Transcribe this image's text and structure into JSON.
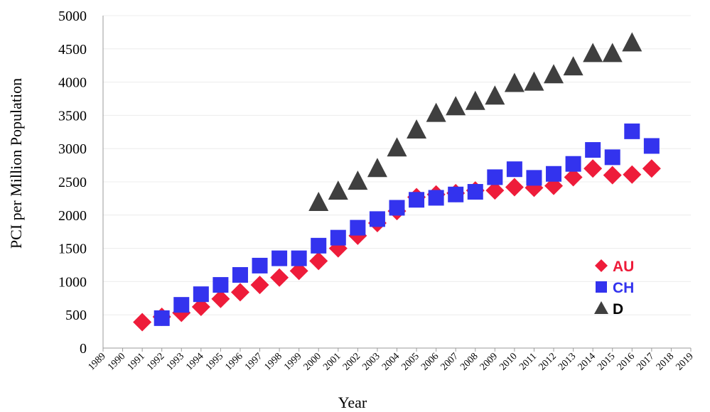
{
  "chart_data": {
    "type": "scatter",
    "title": "",
    "xlabel": "Year",
    "ylabel": "PCI per Million  Population",
    "xlim": [
      1989,
      2019
    ],
    "ylim": [
      0,
      5000
    ],
    "x_ticks": [
      1989,
      1990,
      1991,
      1992,
      1993,
      1994,
      1995,
      1996,
      1997,
      1998,
      1999,
      2000,
      2001,
      2002,
      2003,
      2004,
      2005,
      2006,
      2007,
      2008,
      2009,
      2010,
      2011,
      2012,
      2013,
      2014,
      2015,
      2016,
      2017,
      2018,
      2019
    ],
    "y_ticks": [
      0,
      500,
      1000,
      1500,
      2000,
      2500,
      3000,
      3500,
      4000,
      4500,
      5000
    ],
    "grid": "horizontal",
    "legend_position": "bottom-right",
    "series": [
      {
        "name": "AU",
        "marker": "diamond",
        "color": "#EE1C3A",
        "points": [
          [
            1991,
            390
          ],
          [
            1992,
            470
          ],
          [
            1993,
            530
          ],
          [
            1994,
            620
          ],
          [
            1995,
            740
          ],
          [
            1996,
            840
          ],
          [
            1997,
            950
          ],
          [
            1998,
            1060
          ],
          [
            1999,
            1160
          ],
          [
            2000,
            1310
          ],
          [
            2001,
            1500
          ],
          [
            2002,
            1690
          ],
          [
            2003,
            1880
          ],
          [
            2004,
            2060
          ],
          [
            2005,
            2270
          ],
          [
            2006,
            2310
          ],
          [
            2007,
            2330
          ],
          [
            2008,
            2370
          ],
          [
            2009,
            2370
          ],
          [
            2010,
            2420
          ],
          [
            2011,
            2410
          ],
          [
            2012,
            2440
          ],
          [
            2013,
            2570
          ],
          [
            2014,
            2700
          ],
          [
            2015,
            2600
          ],
          [
            2016,
            2610
          ],
          [
            2017,
            2700
          ]
        ]
      },
      {
        "name": "CH",
        "marker": "square",
        "color": "#3333EE",
        "points": [
          [
            1992,
            450
          ],
          [
            1993,
            650
          ],
          [
            1994,
            810
          ],
          [
            1995,
            950
          ],
          [
            1996,
            1100
          ],
          [
            1997,
            1240
          ],
          [
            1998,
            1350
          ],
          [
            1999,
            1350
          ],
          [
            2000,
            1540
          ],
          [
            2001,
            1660
          ],
          [
            2002,
            1810
          ],
          [
            2003,
            1940
          ],
          [
            2004,
            2110
          ],
          [
            2005,
            2230
          ],
          [
            2006,
            2260
          ],
          [
            2007,
            2310
          ],
          [
            2008,
            2350
          ],
          [
            2009,
            2570
          ],
          [
            2010,
            2690
          ],
          [
            2011,
            2560
          ],
          [
            2012,
            2620
          ],
          [
            2013,
            2770
          ],
          [
            2014,
            2980
          ],
          [
            2015,
            2870
          ],
          [
            2016,
            3260
          ],
          [
            2017,
            3040
          ]
        ]
      },
      {
        "name": "D",
        "marker": "triangle",
        "color": "#3F3F3F",
        "points": [
          [
            2000,
            2190
          ],
          [
            2001,
            2360
          ],
          [
            2002,
            2510
          ],
          [
            2003,
            2700
          ],
          [
            2004,
            3010
          ],
          [
            2005,
            3280
          ],
          [
            2006,
            3530
          ],
          [
            2007,
            3630
          ],
          [
            2008,
            3710
          ],
          [
            2009,
            3790
          ],
          [
            2010,
            3980
          ],
          [
            2011,
            4000
          ],
          [
            2012,
            4110
          ],
          [
            2013,
            4230
          ],
          [
            2014,
            4430
          ],
          [
            2015,
            4430
          ],
          [
            2016,
            4590
          ]
        ]
      }
    ],
    "legend_label_colors": {
      "AU": "#EE1C3A",
      "CH": "#3333EE",
      "D": "#000000"
    }
  }
}
